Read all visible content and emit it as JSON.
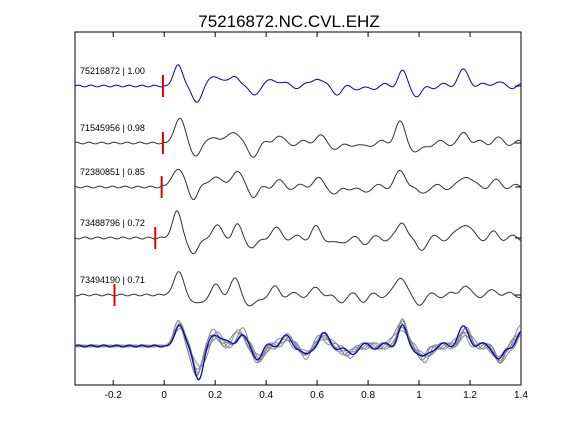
{
  "chart_data": {
    "type": "line",
    "title": "75216872.NC.CVL.EHZ",
    "xlabel": "",
    "ylabel": "",
    "xlim": [
      -0.35,
      1.4
    ],
    "xticks": [
      -0.2,
      0,
      0.2,
      0.4,
      0.6,
      0.8,
      1,
      1.2,
      1.4
    ],
    "xtick_labels": [
      "-0.2",
      "0",
      "0.2",
      "0.4",
      "0.6",
      "0.8",
      "1",
      "1.2",
      "1.4"
    ],
    "grid": false,
    "legend": "none",
    "colors": {
      "reference": "#0000cc",
      "trace": "#333333",
      "overlay": "#888888",
      "pick": "#dd0000"
    },
    "traces": [
      {
        "label": "75216872 | 1.00",
        "pick_time": -0.005,
        "reference": true
      },
      {
        "label": "71545956 | 0.98",
        "pick_time": -0.005,
        "reference": false
      },
      {
        "label": "72380851 | 0.85",
        "pick_time": -0.01,
        "reference": false
      },
      {
        "label": "73488796 | 0.72",
        "pick_time": -0.035,
        "reference": false
      },
      {
        "label": "73494190 | 0.71",
        "pick_time": -0.195,
        "reference": false
      }
    ],
    "waveform_peaks": {
      "reference": [
        [
          0.055,
          1.0
        ],
        [
          0.12,
          -0.55
        ],
        [
          0.2,
          0.45
        ],
        [
          0.28,
          0.6
        ],
        [
          0.35,
          -0.45
        ],
        [
          0.44,
          0.3
        ],
        [
          0.6,
          0.35
        ],
        [
          0.68,
          -0.3
        ],
        [
          0.78,
          -0.2
        ],
        [
          0.93,
          0.75
        ],
        [
          1.0,
          -0.4
        ],
        [
          1.18,
          0.55
        ],
        [
          1.3,
          0.2
        ]
      ],
      "overlay_peaks": [
        [
          0.06,
          0.85
        ],
        [
          0.13,
          -1.0
        ],
        [
          0.2,
          0.45
        ],
        [
          0.3,
          0.55
        ],
        [
          0.37,
          -0.5
        ],
        [
          0.48,
          0.3
        ],
        [
          0.56,
          -0.35
        ],
        [
          0.62,
          0.4
        ],
        [
          0.72,
          -0.35
        ],
        [
          0.93,
          0.85
        ],
        [
          1.02,
          -0.45
        ],
        [
          1.18,
          0.55
        ],
        [
          1.32,
          -0.55
        ],
        [
          1.4,
          0.55
        ]
      ]
    }
  }
}
